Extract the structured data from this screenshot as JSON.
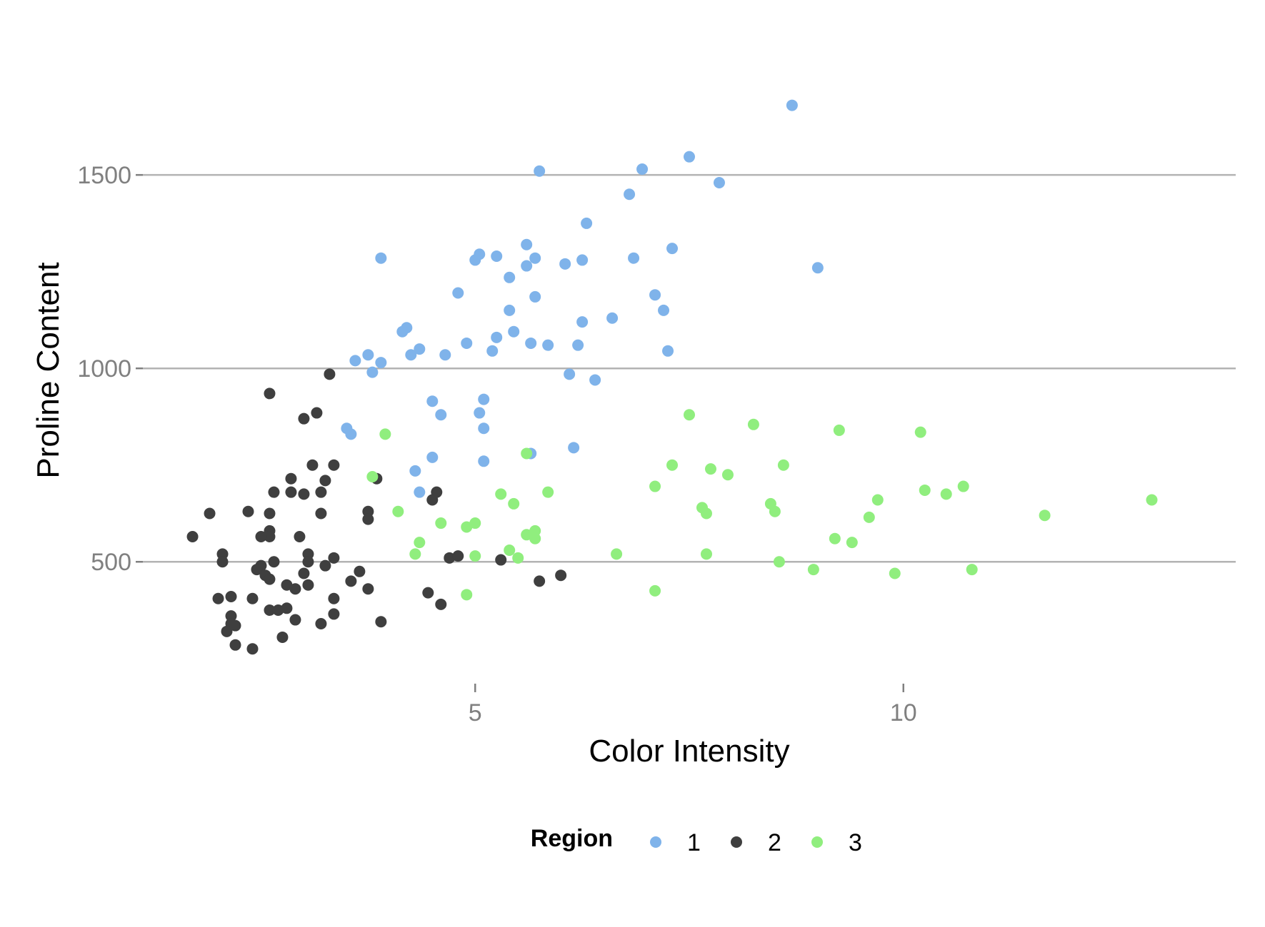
{
  "chart_data": {
    "type": "scatter",
    "title": "",
    "xlabel": "Color Intensity",
    "ylabel": "Proline Content",
    "xlim": [
      1.12,
      13.88
    ],
    "ylim": [
      185,
      1860
    ],
    "x_ticks": [
      5,
      10
    ],
    "y_ticks": [
      500,
      1000,
      1500
    ],
    "grid": {
      "x": false,
      "y": true
    },
    "legend": {
      "position": "bottom",
      "title": "Region"
    },
    "series": [
      {
        "name": "1",
        "color": "#7fb3ea",
        "points": [
          [
            8.7,
            1680
          ],
          [
            7.5,
            1547
          ],
          [
            6.95,
            1515
          ],
          [
            5.75,
            1510
          ],
          [
            7.85,
            1480
          ],
          [
            6.8,
            1450
          ],
          [
            6.3,
            1375
          ],
          [
            5.6,
            1320
          ],
          [
            7.3,
            1310
          ],
          [
            9.0,
            1260
          ],
          [
            5.25,
            1290
          ],
          [
            5.05,
            1295
          ],
          [
            5.0,
            1280
          ],
          [
            5.7,
            1285
          ],
          [
            6.85,
            1285
          ],
          [
            5.6,
            1265
          ],
          [
            6.05,
            1270
          ],
          [
            6.25,
            1280
          ],
          [
            3.9,
            1285
          ],
          [
            5.4,
            1235
          ],
          [
            4.8,
            1195
          ],
          [
            7.1,
            1190
          ],
          [
            5.7,
            1185
          ],
          [
            7.2,
            1150
          ],
          [
            5.4,
            1150
          ],
          [
            6.6,
            1130
          ],
          [
            6.25,
            1120
          ],
          [
            4.2,
            1105
          ],
          [
            4.15,
            1095
          ],
          [
            5.45,
            1095
          ],
          [
            5.25,
            1080
          ],
          [
            4.9,
            1065
          ],
          [
            5.65,
            1065
          ],
          [
            5.85,
            1060
          ],
          [
            6.2,
            1060
          ],
          [
            4.35,
            1050
          ],
          [
            5.2,
            1045
          ],
          [
            7.25,
            1045
          ],
          [
            3.75,
            1035
          ],
          [
            4.25,
            1035
          ],
          [
            4.65,
            1035
          ],
          [
            3.9,
            1015
          ],
          [
            3.6,
            1020
          ],
          [
            3.8,
            990
          ],
          [
            6.1,
            985
          ],
          [
            6.4,
            970
          ],
          [
            5.1,
            920
          ],
          [
            4.5,
            915
          ],
          [
            4.6,
            880
          ],
          [
            5.05,
            885
          ],
          [
            3.5,
            845
          ],
          [
            5.1,
            845
          ],
          [
            3.55,
            830
          ],
          [
            6.15,
            795
          ],
          [
            4.5,
            770
          ],
          [
            5.65,
            780
          ],
          [
            5.1,
            760
          ],
          [
            4.3,
            735
          ],
          [
            4.35,
            680
          ]
        ]
      },
      {
        "name": "2",
        "color": "#3f3f3f",
        "points": [
          [
            3.3,
            985
          ],
          [
            2.6,
            935
          ],
          [
            3.15,
            885
          ],
          [
            3.0,
            870
          ],
          [
            3.1,
            750
          ],
          [
            3.35,
            750
          ],
          [
            2.85,
            715
          ],
          [
            3.25,
            710
          ],
          [
            3.85,
            715
          ],
          [
            2.65,
            680
          ],
          [
            2.85,
            680
          ],
          [
            3.0,
            675
          ],
          [
            3.2,
            680
          ],
          [
            4.55,
            680
          ],
          [
            4.5,
            660
          ],
          [
            1.9,
            625
          ],
          [
            2.35,
            630
          ],
          [
            2.6,
            625
          ],
          [
            3.2,
            625
          ],
          [
            3.75,
            630
          ],
          [
            3.75,
            610
          ],
          [
            2.6,
            580
          ],
          [
            2.6,
            565
          ],
          [
            2.5,
            565
          ],
          [
            2.95,
            565
          ],
          [
            1.7,
            565
          ],
          [
            2.05,
            520
          ],
          [
            3.05,
            520
          ],
          [
            3.35,
            510
          ],
          [
            2.05,
            500
          ],
          [
            2.65,
            500
          ],
          [
            3.05,
            500
          ],
          [
            2.5,
            490
          ],
          [
            3.25,
            490
          ],
          [
            2.45,
            480
          ],
          [
            3.0,
            470
          ],
          [
            3.65,
            475
          ],
          [
            2.55,
            465
          ],
          [
            2.6,
            455
          ],
          [
            3.55,
            450
          ],
          [
            2.8,
            440
          ],
          [
            3.05,
            440
          ],
          [
            2.9,
            430
          ],
          [
            3.75,
            430
          ],
          [
            4.7,
            510
          ],
          [
            4.8,
            515
          ],
          [
            5.3,
            505
          ],
          [
            5.75,
            450
          ],
          [
            6.0,
            465
          ],
          [
            4.45,
            420
          ],
          [
            2.0,
            405
          ],
          [
            2.15,
            410
          ],
          [
            2.4,
            405
          ],
          [
            3.35,
            405
          ],
          [
            4.6,
            390
          ],
          [
            2.6,
            375
          ],
          [
            2.7,
            375
          ],
          [
            2.8,
            380
          ],
          [
            3.35,
            365
          ],
          [
            2.15,
            360
          ],
          [
            2.9,
            350
          ],
          [
            3.2,
            340
          ],
          [
            3.9,
            345
          ],
          [
            2.15,
            340
          ],
          [
            2.2,
            335
          ],
          [
            2.1,
            320
          ],
          [
            2.75,
            305
          ],
          [
            2.2,
            285
          ],
          [
            2.4,
            275
          ]
        ]
      },
      {
        "name": "3",
        "color": "#90ee7e",
        "points": [
          [
            7.5,
            880
          ],
          [
            8.25,
            855
          ],
          [
            9.25,
            840
          ],
          [
            10.2,
            835
          ],
          [
            3.95,
            830
          ],
          [
            5.6,
            780
          ],
          [
            7.3,
            750
          ],
          [
            8.6,
            750
          ],
          [
            7.75,
            740
          ],
          [
            7.95,
            725
          ],
          [
            3.8,
            720
          ],
          [
            7.1,
            695
          ],
          [
            10.7,
            695
          ],
          [
            10.25,
            685
          ],
          [
            5.85,
            680
          ],
          [
            5.3,
            675
          ],
          [
            10.5,
            675
          ],
          [
            9.7,
            660
          ],
          [
            12.9,
            660
          ],
          [
            5.45,
            650
          ],
          [
            8.45,
            650
          ],
          [
            7.65,
            640
          ],
          [
            7.7,
            625
          ],
          [
            8.5,
            630
          ],
          [
            4.1,
            630
          ],
          [
            9.6,
            615
          ],
          [
            11.65,
            620
          ],
          [
            4.6,
            600
          ],
          [
            5.0,
            600
          ],
          [
            4.9,
            590
          ],
          [
            5.6,
            570
          ],
          [
            5.7,
            580
          ],
          [
            5.7,
            560
          ],
          [
            9.2,
            560
          ],
          [
            9.4,
            550
          ],
          [
            4.35,
            550
          ],
          [
            4.3,
            520
          ],
          [
            5.0,
            515
          ],
          [
            5.4,
            530
          ],
          [
            5.5,
            510
          ],
          [
            6.65,
            520
          ],
          [
            7.7,
            520
          ],
          [
            8.55,
            500
          ],
          [
            8.95,
            480
          ],
          [
            9.9,
            470
          ],
          [
            10.8,
            480
          ],
          [
            4.9,
            415
          ],
          [
            7.1,
            425
          ]
        ]
      }
    ]
  }
}
